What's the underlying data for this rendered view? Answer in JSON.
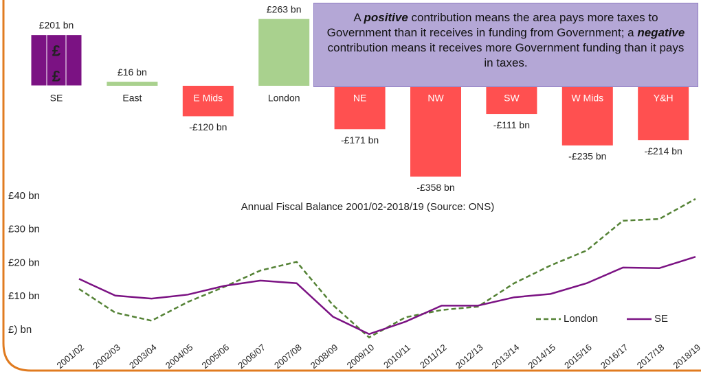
{
  "chart_data": [
    {
      "type": "bar",
      "categories": [
        "SE",
        "East",
        "E Mids",
        "London",
        "NE",
        "NW",
        "SW",
        "W Mids",
        "Y&H"
      ],
      "values": [
        201,
        16,
        -120,
        263,
        -171,
        -358,
        -111,
        -235,
        -214
      ],
      "value_labels": [
        "£201 bn",
        "£16 bn",
        "-£120 bn",
        "£263 bn",
        "-£171 bn",
        "-£358 bn",
        "-£111 bn",
        "-£235 bn",
        "-£214 bn"
      ],
      "colors": [
        "#7b1283",
        "#a9d18e",
        "#ff5050",
        "#a9d18e",
        "#ff5050",
        "#ff5050",
        "#ff5050",
        "#ff5050",
        "#ff5050"
      ],
      "icon": "£",
      "annotation": [
        "A ",
        "positive",
        " contribution means the area pays more taxes to Government than it receives in funding from Government; a ",
        "negative",
        " contribution means it receives more Government funding than it pays in taxes."
      ]
    },
    {
      "type": "line",
      "title": "Annual Fiscal Balance 2001/02-2018/19 (Source: ONS)",
      "categories": [
        "2001/02",
        "2002/03",
        "2003/04",
        "2004/05",
        "2005/06",
        "2006/07",
        "2007/08",
        "2008/09",
        "2009/10",
        "2010/11",
        "2011/12",
        "2012/13",
        "2013/14",
        "2014/15",
        "2015/16",
        "2016/17",
        "2017/18",
        "2018/19"
      ],
      "series": [
        {
          "name": "London",
          "color": "#548235",
          "dash": true,
          "values": [
            12.3,
            5.2,
            2.8,
            8.4,
            12.9,
            17.8,
            20.4,
            7.5,
            -2.2,
            3.8,
            6.0,
            7.0,
            14.0,
            19.3,
            23.8,
            32.7,
            33.2,
            39.2
          ]
        },
        {
          "name": "SE",
          "color": "#7b1283",
          "dash": false,
          "values": [
            15.3,
            10.3,
            9.4,
            10.6,
            13.2,
            14.8,
            14.0,
            4.0,
            -1.2,
            2.5,
            7.3,
            7.3,
            9.8,
            10.8,
            14.0,
            18.7,
            18.5,
            21.9
          ]
        }
      ],
      "ylim": [
        -3,
        40
      ],
      "yticks": [
        {
          "value": 0,
          "label": "£) bn"
        },
        {
          "value": 10,
          "label": "£10 bn"
        },
        {
          "value": 20,
          "label": "£20 bn"
        },
        {
          "value": 30,
          "label": "£30 bn"
        },
        {
          "value": 40,
          "label": "£40 bn"
        }
      ],
      "legend": "bottom-right"
    }
  ]
}
